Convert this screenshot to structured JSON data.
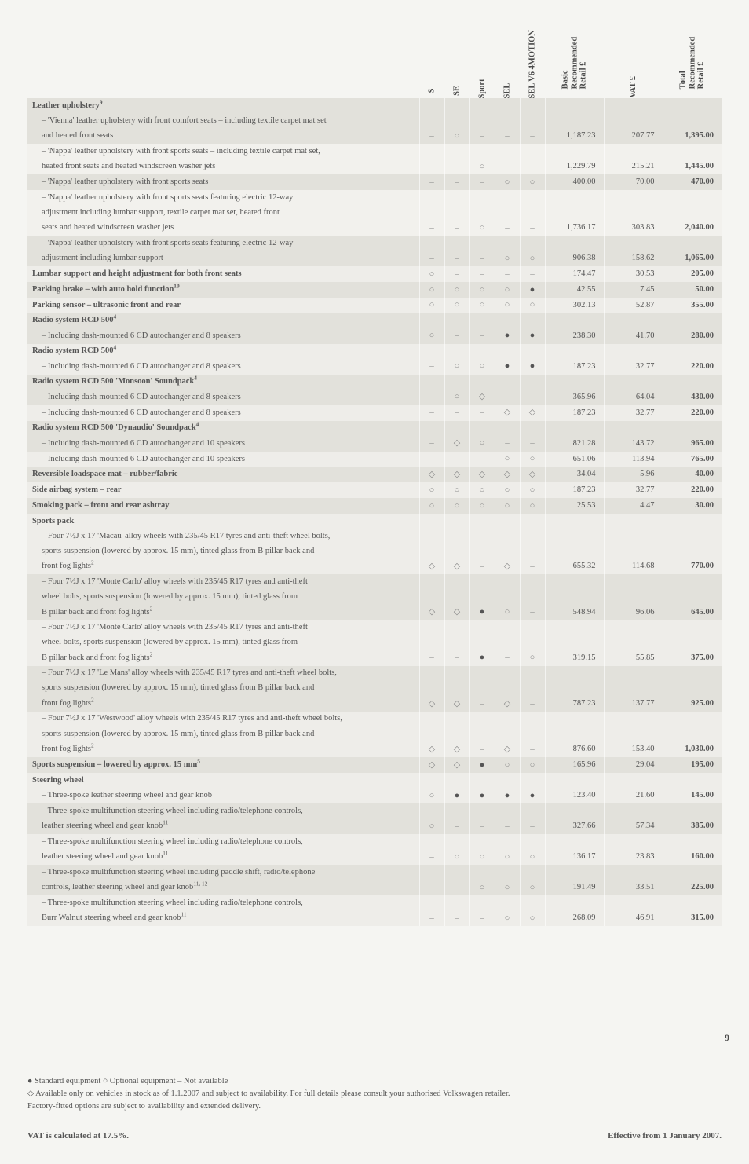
{
  "columns": [
    "S",
    "SE",
    "Sport",
    "SEL",
    "SEL V6 4MOTION"
  ],
  "price_columns": [
    {
      "line1": "Basic",
      "line2": "Recommended",
      "line3": "Retail £"
    },
    {
      "line1": "VAT £"
    },
    {
      "line1": "Total",
      "line2": "Recommended",
      "line3": "Retail £"
    }
  ],
  "rows": [
    {
      "style": "dark",
      "bold": true,
      "label": "Leather upholstery",
      "sup": "9",
      "sym": [
        "",
        "",
        "",
        "",
        ""
      ],
      "prices": [
        "",
        "",
        ""
      ]
    },
    {
      "style": "dark",
      "indent": true,
      "label": "– 'Vienna' leather upholstery with front comfort seats – including textile carpet mat set",
      "sym": [
        "",
        "",
        "",
        "",
        ""
      ],
      "prices": [
        "",
        "",
        ""
      ]
    },
    {
      "style": "dark",
      "indent": true,
      "label": "and heated front seats",
      "sym": [
        "dash",
        "circ",
        "dash",
        "dash",
        "dash"
      ],
      "prices": [
        "1,187.23",
        "207.77",
        "1,395.00"
      ]
    },
    {
      "style": "lighter",
      "indent": true,
      "label": "– 'Nappa' leather upholstery with front sports seats – including textile carpet mat set,",
      "sym": [
        "",
        "",
        "",
        "",
        ""
      ],
      "prices": [
        "",
        "",
        ""
      ]
    },
    {
      "style": "lighter",
      "indent": true,
      "label": "heated front seats and heated windscreen washer jets",
      "sym": [
        "dash",
        "dash",
        "circ",
        "dash",
        "dash"
      ],
      "prices": [
        "1,229.79",
        "215.21",
        "1,445.00"
      ]
    },
    {
      "style": "dark",
      "indent": true,
      "label": "– 'Nappa' leather upholstery with front sports seats",
      "sym": [
        "dash",
        "dash",
        "dash",
        "circ",
        "circ"
      ],
      "prices": [
        "400.00",
        "70.00",
        "470.00"
      ]
    },
    {
      "style": "lighter",
      "indent": true,
      "label": "– 'Nappa' leather upholstery with front sports seats featuring electric 12-way",
      "sym": [
        "",
        "",
        "",
        "",
        ""
      ],
      "prices": [
        "",
        "",
        ""
      ]
    },
    {
      "style": "lighter",
      "indent": true,
      "label": "adjustment including lumbar support, textile carpet mat set, heated front",
      "sym": [
        "",
        "",
        "",
        "",
        ""
      ],
      "prices": [
        "",
        "",
        ""
      ]
    },
    {
      "style": "lighter",
      "indent": true,
      "label": "seats and heated windscreen washer jets",
      "sym": [
        "dash",
        "dash",
        "circ",
        "dash",
        "dash"
      ],
      "prices": [
        "1,736.17",
        "303.83",
        "2,040.00"
      ]
    },
    {
      "style": "dark",
      "indent": true,
      "label": "– 'Nappa' leather upholstery with front sports seats featuring electric 12-way",
      "sym": [
        "",
        "",
        "",
        "",
        ""
      ],
      "prices": [
        "",
        "",
        ""
      ]
    },
    {
      "style": "dark",
      "indent": true,
      "label": "adjustment including lumbar support",
      "sym": [
        "dash",
        "dash",
        "dash",
        "circ",
        "circ"
      ],
      "prices": [
        "906.38",
        "158.62",
        "1,065.00"
      ]
    },
    {
      "style": "light",
      "bold": true,
      "label": "Lumbar support and height adjustment for both front seats",
      "sym": [
        "circ",
        "dash",
        "dash",
        "dash",
        "dash"
      ],
      "prices": [
        "174.47",
        "30.53",
        "205.00"
      ]
    },
    {
      "style": "dark",
      "bold": true,
      "label": "Parking brake – with auto hold function",
      "sup": "10",
      "sym": [
        "circ",
        "circ",
        "circ",
        "circ",
        "dot"
      ],
      "prices": [
        "42.55",
        "7.45",
        "50.00"
      ]
    },
    {
      "style": "light",
      "bold": true,
      "label": "Parking sensor – ultrasonic front and rear",
      "sym": [
        "circ",
        "circ",
        "circ",
        "circ",
        "circ"
      ],
      "prices": [
        "302.13",
        "52.87",
        "355.00"
      ]
    },
    {
      "style": "dark",
      "bold": true,
      "label": "Radio system RCD 500",
      "sup": "4",
      "sym": [
        "",
        "",
        "",
        "",
        ""
      ],
      "prices": [
        "",
        "",
        ""
      ]
    },
    {
      "style": "dark",
      "indent": true,
      "label": "– Including dash-mounted 6 CD autochanger and 8 speakers",
      "sym": [
        "circ",
        "dash",
        "dash",
        "dot",
        "dot"
      ],
      "prices": [
        "238.30",
        "41.70",
        "280.00"
      ]
    },
    {
      "style": "light",
      "bold": true,
      "label": "Radio system RCD 500",
      "sup": "4",
      "sym": [
        "",
        "",
        "",
        "",
        ""
      ],
      "prices": [
        "",
        "",
        ""
      ]
    },
    {
      "style": "light",
      "indent": true,
      "label": "– Including dash-mounted 6 CD autochanger and 8 speakers",
      "sym": [
        "dash",
        "circ",
        "circ",
        "dot",
        "dot"
      ],
      "prices": [
        "187.23",
        "32.77",
        "220.00"
      ]
    },
    {
      "style": "dark",
      "bold": true,
      "label": "Radio system RCD 500 'Monsoon' Soundpack",
      "sup": "4",
      "sym": [
        "",
        "",
        "",
        "",
        ""
      ],
      "prices": [
        "",
        "",
        ""
      ]
    },
    {
      "style": "dark",
      "indent": true,
      "label": "– Including dash-mounted 6 CD autochanger and 8 speakers",
      "sym": [
        "dash",
        "circ",
        "diam",
        "dash",
        "dash"
      ],
      "prices": [
        "365.96",
        "64.04",
        "430.00"
      ]
    },
    {
      "style": "light",
      "indent": true,
      "label": "– Including dash-mounted 6 CD autochanger and 8 speakers",
      "sym": [
        "dash",
        "dash",
        "dash",
        "diam",
        "diam"
      ],
      "prices": [
        "187.23",
        "32.77",
        "220.00"
      ]
    },
    {
      "style": "dark",
      "bold": true,
      "label": "Radio system RCD 500 'Dynaudio' Soundpack",
      "sup": "4",
      "sym": [
        "",
        "",
        "",
        "",
        ""
      ],
      "prices": [
        "",
        "",
        ""
      ]
    },
    {
      "style": "dark",
      "indent": true,
      "label": "– Including dash-mounted 6 CD autochanger and 10 speakers",
      "sym": [
        "dash",
        "diam",
        "circ",
        "dash",
        "dash"
      ],
      "prices": [
        "821.28",
        "143.72",
        "965.00"
      ]
    },
    {
      "style": "light",
      "indent": true,
      "label": "– Including dash-mounted 6 CD autochanger and 10 speakers",
      "sym": [
        "dash",
        "dash",
        "dash",
        "circ",
        "circ"
      ],
      "prices": [
        "651.06",
        "113.94",
        "765.00"
      ]
    },
    {
      "style": "dark",
      "bold": true,
      "label": "Reversible loadspace mat – rubber/fabric",
      "sym": [
        "diam",
        "diam",
        "diam",
        "diam",
        "diam"
      ],
      "prices": [
        "34.04",
        "5.96",
        "40.00"
      ]
    },
    {
      "style": "light",
      "bold": true,
      "label": "Side airbag system – rear",
      "sym": [
        "circ",
        "circ",
        "circ",
        "circ",
        "circ"
      ],
      "prices": [
        "187.23",
        "32.77",
        "220.00"
      ]
    },
    {
      "style": "dark",
      "bold": true,
      "label": "Smoking pack – front and rear ashtray",
      "sym": [
        "circ",
        "circ",
        "circ",
        "circ",
        "circ"
      ],
      "prices": [
        "25.53",
        "4.47",
        "30.00"
      ]
    },
    {
      "style": "light",
      "bold": true,
      "label": "Sports pack",
      "sym": [
        "",
        "",
        "",
        "",
        ""
      ],
      "prices": [
        "",
        "",
        ""
      ]
    },
    {
      "style": "light",
      "indent": true,
      "label": "– Four 7½J x 17 'Macau' alloy wheels with 235/45 R17 tyres and anti-theft wheel bolts,",
      "sym": [
        "",
        "",
        "",
        "",
        ""
      ],
      "prices": [
        "",
        "",
        ""
      ]
    },
    {
      "style": "light",
      "indent": true,
      "label": "sports suspension (lowered by approx. 15 mm), tinted glass from B pillar back and",
      "sym": [
        "",
        "",
        "",
        "",
        ""
      ],
      "prices": [
        "",
        "",
        ""
      ]
    },
    {
      "style": "light",
      "indent": true,
      "label": "front fog lights",
      "sup": "2",
      "sym": [
        "diam",
        "diam",
        "dash",
        "diam",
        "dash"
      ],
      "prices": [
        "655.32",
        "114.68",
        "770.00"
      ]
    },
    {
      "style": "dark",
      "indent": true,
      "label": "– Four 7½J x 17 'Monte Carlo' alloy wheels with 235/45 R17 tyres and anti-theft",
      "sym": [
        "",
        "",
        "",
        "",
        ""
      ],
      "prices": [
        "",
        "",
        ""
      ]
    },
    {
      "style": "dark",
      "indent": true,
      "label": "wheel bolts, sports suspension (lowered by approx. 15 mm), tinted glass from",
      "sym": [
        "",
        "",
        "",
        "",
        ""
      ],
      "prices": [
        "",
        "",
        ""
      ]
    },
    {
      "style": "dark",
      "indent": true,
      "label": "B pillar back and front fog lights",
      "sup": "2",
      "sym": [
        "diam",
        "diam",
        "dot",
        "circ",
        "dash"
      ],
      "prices": [
        "548.94",
        "96.06",
        "645.00"
      ]
    },
    {
      "style": "light",
      "indent": true,
      "label": "– Four 7½J x 17 'Monte Carlo' alloy wheels with 235/45 R17 tyres and anti-theft",
      "sym": [
        "",
        "",
        "",
        "",
        ""
      ],
      "prices": [
        "",
        "",
        ""
      ]
    },
    {
      "style": "light",
      "indent": true,
      "label": "wheel bolts, sports suspension (lowered by approx. 15 mm), tinted glass from",
      "sym": [
        "",
        "",
        "",
        "",
        ""
      ],
      "prices": [
        "",
        "",
        ""
      ]
    },
    {
      "style": "light",
      "indent": true,
      "label": "B pillar back and front fog lights",
      "sup": "2",
      "sym": [
        "dash",
        "dash",
        "dot",
        "dash",
        "circ"
      ],
      "prices": [
        "319.15",
        "55.85",
        "375.00"
      ]
    },
    {
      "style": "dark",
      "indent": true,
      "label": "– Four 7½J x 17 'Le Mans' alloy wheels with 235/45 R17 tyres and anti-theft wheel bolts,",
      "sym": [
        "",
        "",
        "",
        "",
        ""
      ],
      "prices": [
        "",
        "",
        ""
      ]
    },
    {
      "style": "dark",
      "indent": true,
      "label": "sports suspension (lowered by approx. 15 mm), tinted glass from B pillar back and",
      "sym": [
        "",
        "",
        "",
        "",
        ""
      ],
      "prices": [
        "",
        "",
        ""
      ]
    },
    {
      "style": "dark",
      "indent": true,
      "label": "front fog lights",
      "sup": "2",
      "sym": [
        "diam",
        "diam",
        "dash",
        "diam",
        "dash"
      ],
      "prices": [
        "787.23",
        "137.77",
        "925.00"
      ]
    },
    {
      "style": "light",
      "indent": true,
      "label": "– Four 7½J x 17 'Westwood' alloy wheels with 235/45 R17 tyres and anti-theft wheel bolts,",
      "sym": [
        "",
        "",
        "",
        "",
        ""
      ],
      "prices": [
        "",
        "",
        ""
      ]
    },
    {
      "style": "light",
      "indent": true,
      "label": "sports suspension (lowered by approx. 15 mm), tinted glass from B pillar back and",
      "sym": [
        "",
        "",
        "",
        "",
        ""
      ],
      "prices": [
        "",
        "",
        ""
      ]
    },
    {
      "style": "light",
      "indent": true,
      "label": "front fog lights",
      "sup": "2",
      "sym": [
        "diam",
        "diam",
        "dash",
        "diam",
        "dash"
      ],
      "prices": [
        "876.60",
        "153.40",
        "1,030.00"
      ]
    },
    {
      "style": "dark",
      "bold": true,
      "label": "Sports suspension – lowered by approx. 15 mm",
      "sup": "5",
      "sym": [
        "diam",
        "diam",
        "dot",
        "circ",
        "circ"
      ],
      "prices": [
        "165.96",
        "29.04",
        "195.00"
      ]
    },
    {
      "style": "light",
      "bold": true,
      "label": "Steering wheel",
      "sym": [
        "",
        "",
        "",
        "",
        ""
      ],
      "prices": [
        "",
        "",
        ""
      ]
    },
    {
      "style": "light",
      "indent": true,
      "label": "– Three-spoke leather steering wheel and gear knob",
      "sym": [
        "circ",
        "dot",
        "dot",
        "dot",
        "dot"
      ],
      "prices": [
        "123.40",
        "21.60",
        "145.00"
      ]
    },
    {
      "style": "dark",
      "indent": true,
      "label": "– Three-spoke multifunction steering wheel including radio/telephone controls,",
      "sym": [
        "",
        "",
        "",
        "",
        ""
      ],
      "prices": [
        "",
        "",
        ""
      ]
    },
    {
      "style": "dark",
      "indent": true,
      "label": "leather steering wheel and gear knob",
      "sup": "11",
      "sym": [
        "circ",
        "dash",
        "dash",
        "dash",
        "dash"
      ],
      "prices": [
        "327.66",
        "57.34",
        "385.00"
      ]
    },
    {
      "style": "light",
      "indent": true,
      "label": "– Three-spoke multifunction steering wheel including radio/telephone controls,",
      "sym": [
        "",
        "",
        "",
        "",
        ""
      ],
      "prices": [
        "",
        "",
        ""
      ]
    },
    {
      "style": "light",
      "indent": true,
      "label": "leather steering wheel and gear knob",
      "sup": "11",
      "sym": [
        "dash",
        "circ",
        "circ",
        "circ",
        "circ"
      ],
      "prices": [
        "136.17",
        "23.83",
        "160.00"
      ]
    },
    {
      "style": "dark",
      "indent": true,
      "label": "– Three-spoke multifunction steering wheel including paddle shift, radio/telephone",
      "sym": [
        "",
        "",
        "",
        "",
        ""
      ],
      "prices": [
        "",
        "",
        ""
      ]
    },
    {
      "style": "dark",
      "indent": true,
      "label": "controls, leather steering wheel and gear knob",
      "sup": "11, 12",
      "sym": [
        "dash",
        "dash",
        "circ",
        "circ",
        "circ"
      ],
      "prices": [
        "191.49",
        "33.51",
        "225.00"
      ]
    },
    {
      "style": "light",
      "indent": true,
      "label": "– Three-spoke multifunction steering wheel including radio/telephone controls,",
      "sym": [
        "",
        "",
        "",
        "",
        ""
      ],
      "prices": [
        "",
        "",
        ""
      ]
    },
    {
      "style": "light",
      "indent": true,
      "label": "Burr Walnut steering wheel and gear knob",
      "sup": "11",
      "sym": [
        "dash",
        "dash",
        "dash",
        "circ",
        "circ"
      ],
      "prices": [
        "268.09",
        "46.91",
        "315.00"
      ]
    }
  ],
  "legend": "●  Standard equipment    ○  Optional equipment    –  Not available",
  "legend2": "◇  Available only on vehicles in stock as of 1.1.2007 and subject to availability. For full details please consult your authorised Volkswagen retailer.",
  "legend3": "Factory-fitted options are subject to availability and extended delivery.",
  "footer_left": "VAT is calculated at 17.5%.",
  "footer_right": "Effective from 1 January 2007.",
  "page_num": "9"
}
